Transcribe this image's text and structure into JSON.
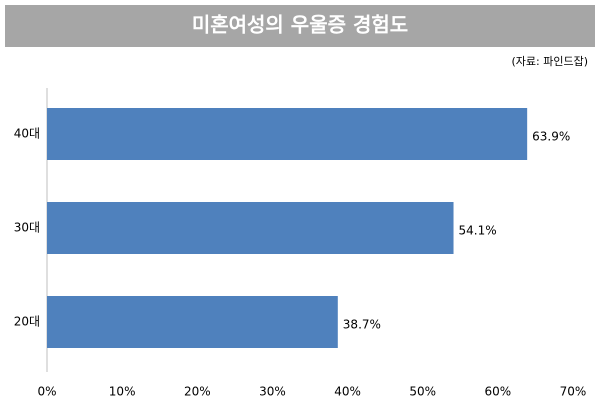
{
  "chart_data": {
    "type": "bar",
    "orientation": "horizontal",
    "title": "미혼여성의 우울증 경험도",
    "source": "(자료: 파인드잡)",
    "categories": [
      "40대",
      "30대",
      "20대"
    ],
    "values": [
      63.9,
      54.1,
      38.7
    ],
    "value_labels": [
      "63.9%",
      "54.1%",
      "38.7%"
    ],
    "color": "#4f81bd",
    "xlim": [
      0,
      70
    ],
    "xticks": [
      {
        "value": 0,
        "label": "0%"
      },
      {
        "value": 10,
        "label": "10%"
      },
      {
        "value": 20,
        "label": "20%"
      },
      {
        "value": 30,
        "label": "30%"
      },
      {
        "value": 40,
        "label": "40%"
      },
      {
        "value": 50,
        "label": "50%"
      },
      {
        "value": 60,
        "label": "60%"
      },
      {
        "value": 70,
        "label": "70%"
      }
    ],
    "grid": false
  }
}
